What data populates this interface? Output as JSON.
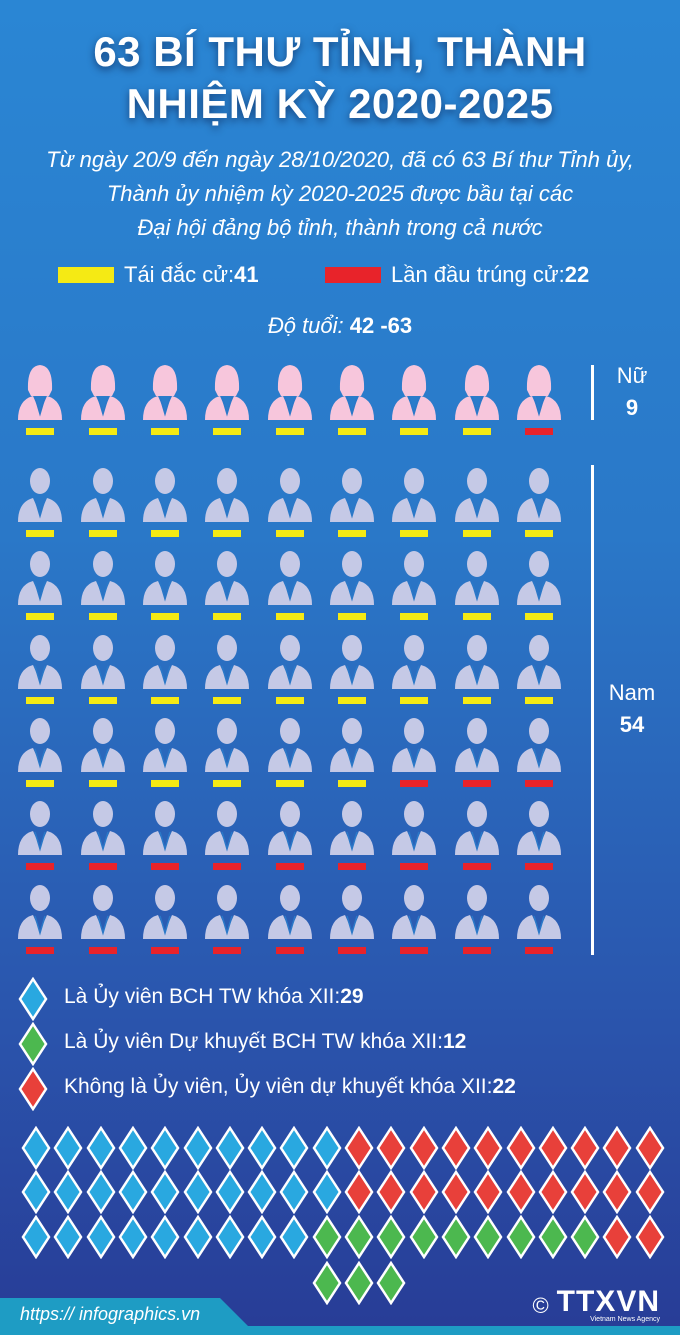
{
  "header": {
    "title_line1": "63 BÍ THƯ TỈNH, THÀNH",
    "title_line2": "NHIỆM KỲ 2020-2025",
    "subtitle_line1": "Từ ngày 20/9 đến ngày 28/10/2020, đã có 63 Bí thư Tỉnh ủy,",
    "subtitle_line2": "Thành ủy nhiệm kỳ 2020-2025 được bầu tại các",
    "subtitle_line3": "Đại hội đảng bộ tỉnh, thành trong cả nước"
  },
  "legend": {
    "reelected_label": "Tái đắc cử: ",
    "reelected_value": "41",
    "first_label": "Lần đầu trúng cử: ",
    "first_value": "22",
    "age_label": "Độ tuổi: ",
    "age_value": "42 -63"
  },
  "groups": {
    "female_label": "Nữ",
    "female_value": "9",
    "male_label": "Nam",
    "male_value": "54"
  },
  "colors": {
    "reelected": "#f5ea14",
    "first": "#e8232a",
    "female": "#f7c6dc",
    "male": "#c5c9e6",
    "blue": "#29a8e0",
    "green": "#4cb84f",
    "red": "#e8403a"
  },
  "pictogram": {
    "female": [
      "R",
      "R",
      "R",
      "R",
      "R",
      "R",
      "R",
      "R",
      "F"
    ],
    "male": [
      [
        "R",
        "R",
        "R",
        "R",
        "R",
        "R",
        "R",
        "R",
        "R"
      ],
      [
        "R",
        "R",
        "R",
        "R",
        "R",
        "R",
        "R",
        "R",
        "R"
      ],
      [
        "R",
        "R",
        "R",
        "R",
        "R",
        "R",
        "R",
        "R",
        "R"
      ],
      [
        "R",
        "R",
        "R",
        "R",
        "R",
        "R",
        "F",
        "F",
        "F"
      ],
      [
        "F",
        "F",
        "F",
        "F",
        "F",
        "F",
        "F",
        "F",
        "F"
      ],
      [
        "F",
        "F",
        "F",
        "F",
        "F",
        "F",
        "F",
        "F",
        "F"
      ]
    ]
  },
  "membership": {
    "items": [
      {
        "label": "Là Ủy viên BCH TW khóa XII: ",
        "value": "29",
        "color": "blue"
      },
      {
        "label": "Là Ủy viên Dự khuyết BCH TW khóa XII: ",
        "value": "12",
        "color": "green"
      },
      {
        "label": "Không là Ủy viên, Ủy viên dự khuyết khóa XII: ",
        "value": "22",
        "color": "red"
      }
    ],
    "grid": [
      [
        "blue",
        "blue",
        "blue",
        "blue",
        "blue",
        "blue",
        "blue",
        "blue",
        "blue",
        "blue",
        "red",
        "red",
        "red",
        "red",
        "red",
        "red",
        "red",
        "red",
        "red",
        "red"
      ],
      [
        "blue",
        "blue",
        "blue",
        "blue",
        "blue",
        "blue",
        "blue",
        "blue",
        "blue",
        "blue",
        "red",
        "red",
        "red",
        "red",
        "red",
        "red",
        "red",
        "red",
        "red",
        "red"
      ],
      [
        "blue",
        "blue",
        "blue",
        "blue",
        "blue",
        "blue",
        "blue",
        "blue",
        "blue",
        "green",
        "green",
        "green",
        "green",
        "green",
        "green",
        "green",
        "green",
        "green",
        "red",
        "red"
      ],
      [
        "green",
        "green",
        "green"
      ]
    ]
  },
  "footer": {
    "url": "https:// infographics.vn",
    "copyright": "©",
    "logo": "TTXVN",
    "agency": "Vietnam News Agency"
  }
}
